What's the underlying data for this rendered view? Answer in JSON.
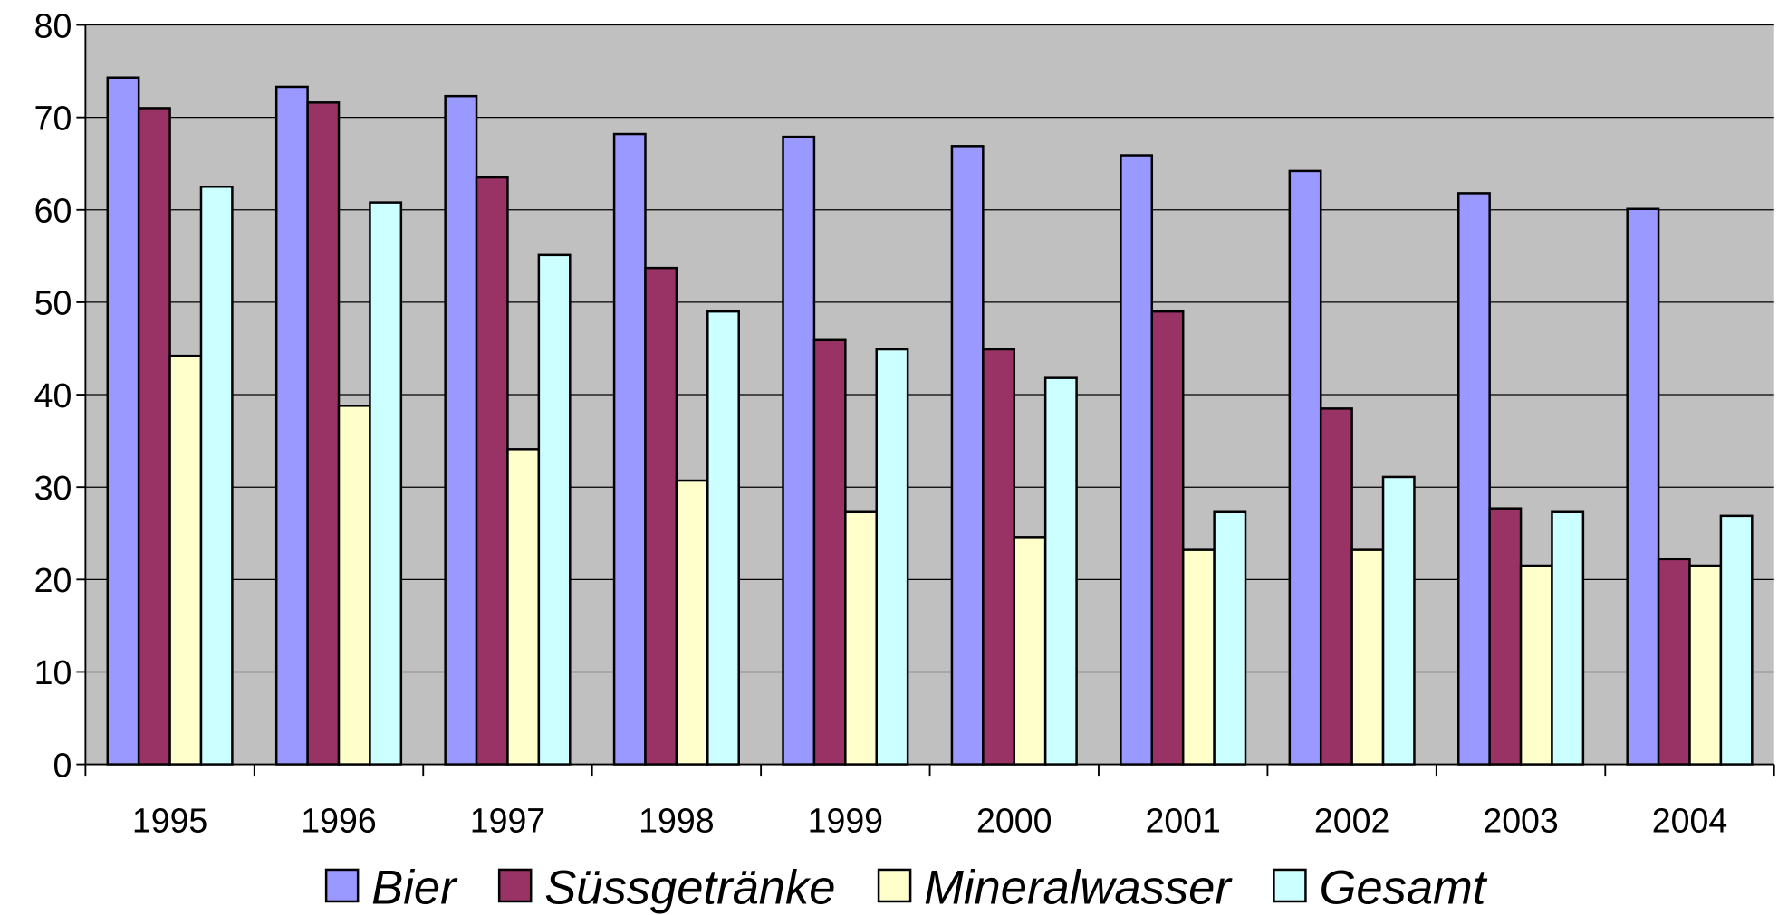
{
  "chart_data": {
    "type": "bar",
    "categories": [
      "1995",
      "1996",
      "1997",
      "1998",
      "1999",
      "2000",
      "2001",
      "2002",
      "2003",
      "2004"
    ],
    "series": [
      {
        "name": "Bier",
        "color": "#9999ff",
        "values": [
          74.3,
          73.3,
          72.3,
          68.2,
          67.9,
          66.9,
          65.9,
          64.2,
          61.8,
          60.1
        ]
      },
      {
        "name": "Süssgetränke",
        "color": "#993366",
        "values": [
          71,
          71.6,
          63.5,
          53.7,
          45.9,
          44.9,
          49,
          38.5,
          27.7,
          22.2
        ]
      },
      {
        "name": "Mineralwasser",
        "color": "#ffffcc",
        "values": [
          44.2,
          38.8,
          34.1,
          30.7,
          27.3,
          24.6,
          23.2,
          23.2,
          21.5,
          21.5
        ]
      },
      {
        "name": "Gesamt",
        "color": "#ccffff",
        "values": [
          62.5,
          60.8,
          55.1,
          49,
          44.9,
          41.8,
          27.3,
          31.1,
          27.3,
          26.9
        ]
      }
    ],
    "ylim": [
      0,
      80
    ],
    "yticks": [
      0,
      10,
      20,
      30,
      40,
      50,
      60,
      70,
      80
    ],
    "grid": true,
    "legend": "bottom",
    "plot_background": "#c0c0c0"
  }
}
